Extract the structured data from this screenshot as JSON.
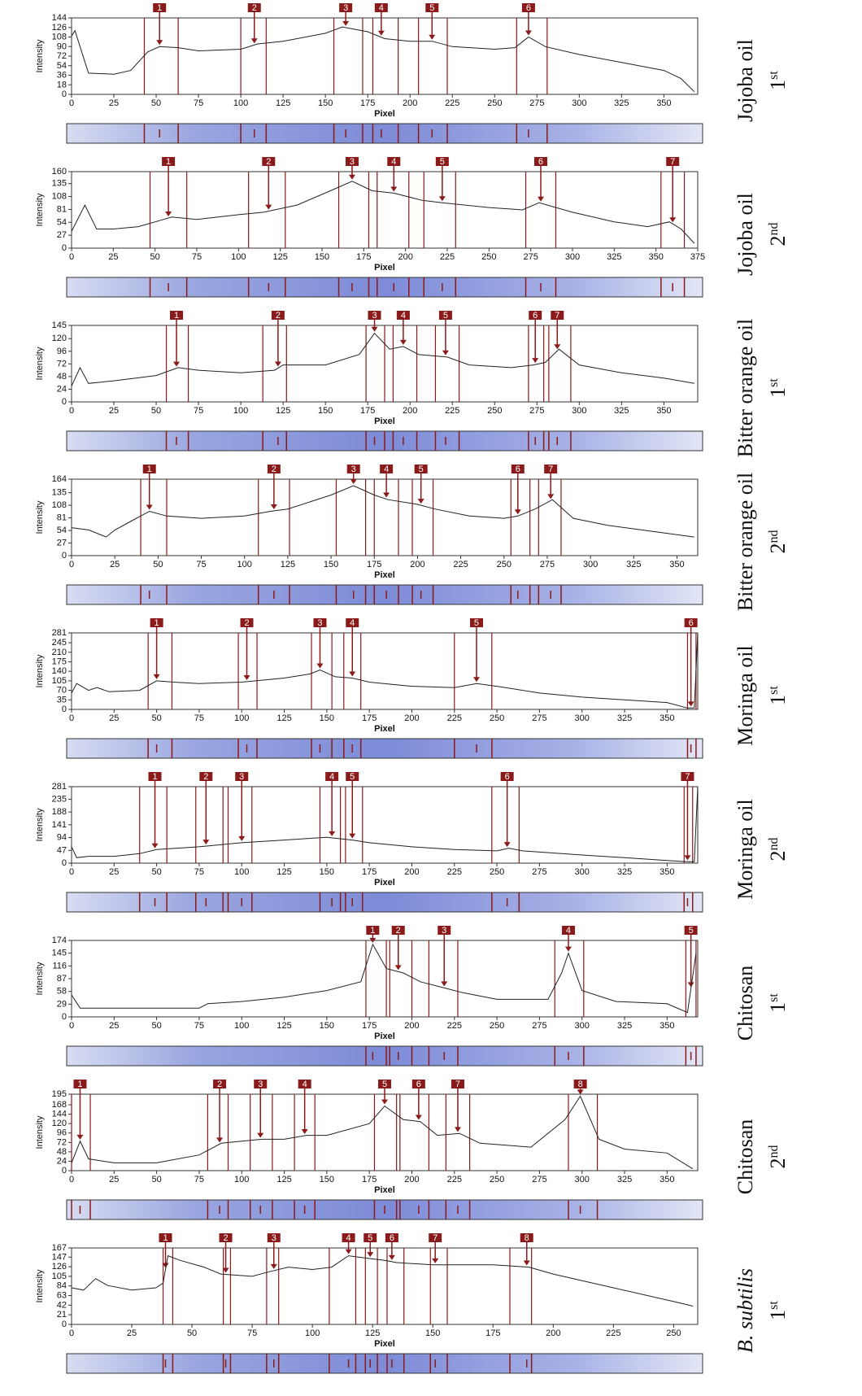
{
  "chart_data": [
    {
      "type": "line",
      "sample": "Jojoba oil",
      "run": "1",
      "run_suffix": "st",
      "x_label": "Pixel",
      "y_label": "Intensity",
      "xlim": [
        0,
        370
      ],
      "xticks": [
        0,
        25,
        50,
        75,
        100,
        125,
        150,
        175,
        200,
        225,
        250,
        275,
        300,
        325,
        350
      ],
      "ylim": [
        0,
        144
      ],
      "yticks": [
        0,
        18,
        36,
        54,
        72,
        90,
        108,
        126,
        144
      ],
      "color": "#222222",
      "x": [
        0,
        2,
        10,
        25,
        35,
        45,
        52,
        63,
        75,
        100,
        110,
        125,
        150,
        160,
        175,
        185,
        200,
        213,
        225,
        250,
        262,
        270,
        280,
        300,
        325,
        350,
        360,
        368
      ],
      "values": [
        110,
        120,
        40,
        38,
        45,
        80,
        90,
        88,
        82,
        85,
        95,
        100,
        115,
        127,
        118,
        105,
        100,
        100,
        90,
        85,
        88,
        108,
        90,
        75,
        60,
        45,
        30,
        5
      ],
      "peaks": [
        {
          "label": "1",
          "x": 52,
          "start": 43,
          "end": 63
        },
        {
          "label": "2",
          "x": 108,
          "start": 100,
          "end": 115
        },
        {
          "label": "3",
          "x": 162,
          "start": 155,
          "end": 172
        },
        {
          "label": "4",
          "x": 183,
          "start": 178,
          "end": 193
        },
        {
          "label": "5",
          "x": 213,
          "start": 205,
          "end": 222
        },
        {
          "label": "6",
          "x": 270,
          "start": 263,
          "end": 281
        }
      ]
    },
    {
      "type": "line",
      "sample": "Jojoba oil",
      "run": "2",
      "run_suffix": "nd",
      "x_label": "Pixel",
      "y_label": "Intensity",
      "xlim": [
        0,
        375
      ],
      "xticks": [
        0,
        25,
        50,
        75,
        100,
        125,
        150,
        175,
        200,
        225,
        250,
        275,
        300,
        325,
        350,
        375
      ],
      "ylim": [
        0,
        160
      ],
      "yticks": [
        0,
        27,
        54,
        81,
        108,
        135,
        160
      ],
      "color": "#222222",
      "x": [
        0,
        8,
        15,
        25,
        40,
        55,
        60,
        75,
        100,
        115,
        135,
        155,
        168,
        180,
        193,
        210,
        222,
        250,
        270,
        280,
        300,
        325,
        345,
        358,
        365,
        373
      ],
      "values": [
        35,
        90,
        40,
        40,
        45,
        60,
        65,
        60,
        70,
        75,
        90,
        120,
        140,
        120,
        115,
        100,
        95,
        85,
        80,
        95,
        75,
        55,
        45,
        55,
        40,
        10
      ],
      "peaks": [
        {
          "label": "1",
          "x": 58,
          "start": 47,
          "end": 69
        },
        {
          "label": "2",
          "x": 118,
          "start": 106,
          "end": 128
        },
        {
          "label": "3",
          "x": 168,
          "start": 160,
          "end": 178
        },
        {
          "label": "4",
          "x": 193,
          "start": 183,
          "end": 202
        },
        {
          "label": "5",
          "x": 222,
          "start": 211,
          "end": 230
        },
        {
          "label": "6",
          "x": 281,
          "start": 272,
          "end": 290
        },
        {
          "label": "7",
          "x": 360,
          "start": 353,
          "end": 367
        }
      ]
    },
    {
      "type": "line",
      "sample": "Bitter orange oil",
      "run": "1",
      "run_suffix": "st",
      "x_label": "Pixel",
      "y_label": "Intensity",
      "xlim": [
        0,
        370
      ],
      "xticks": [
        0,
        25,
        50,
        75,
        100,
        125,
        150,
        175,
        200,
        225,
        250,
        275,
        300,
        325,
        350
      ],
      "ylim": [
        0,
        145
      ],
      "yticks": [
        0,
        24,
        48,
        72,
        96,
        120,
        145
      ],
      "color": "#222222",
      "x": [
        0,
        5,
        10,
        25,
        50,
        63,
        75,
        100,
        120,
        125,
        150,
        170,
        179,
        188,
        196,
        205,
        222,
        235,
        260,
        273,
        280,
        288,
        300,
        325,
        350,
        368
      ],
      "values": [
        30,
        65,
        35,
        40,
        50,
        65,
        60,
        55,
        60,
        70,
        70,
        90,
        130,
        100,
        105,
        90,
        85,
        70,
        65,
        70,
        75,
        100,
        70,
        55,
        45,
        35
      ],
      "peaks": [
        {
          "label": "1",
          "x": 62,
          "start": 56,
          "end": 69
        },
        {
          "label": "2",
          "x": 122,
          "start": 113,
          "end": 127
        },
        {
          "label": "3",
          "x": 179,
          "start": 174,
          "end": 185
        },
        {
          "label": "4",
          "x": 196,
          "start": 190,
          "end": 204
        },
        {
          "label": "5",
          "x": 221,
          "start": 215,
          "end": 229
        },
        {
          "label": "6",
          "x": 274,
          "start": 270,
          "end": 279
        },
        {
          "label": "7",
          "x": 287,
          "start": 282,
          "end": 295
        }
      ]
    },
    {
      "type": "line",
      "sample": "Bitter orange oil",
      "run": "2",
      "run_suffix": "nd",
      "x_label": "Pixel",
      "y_label": "Intensity",
      "xlim": [
        0,
        362
      ],
      "xticks": [
        0,
        25,
        50,
        75,
        100,
        125,
        150,
        175,
        200,
        225,
        250,
        275,
        300,
        325,
        350
      ],
      "ylim": [
        0,
        164
      ],
      "yticks": [
        0,
        27,
        54,
        81,
        108,
        135,
        164
      ],
      "color": "#222222",
      "x": [
        0,
        10,
        20,
        25,
        35,
        45,
        55,
        75,
        100,
        115,
        125,
        150,
        163,
        175,
        183,
        200,
        210,
        230,
        250,
        258,
        268,
        278,
        290,
        310,
        330,
        360
      ],
      "values": [
        60,
        55,
        40,
        55,
        75,
        95,
        85,
        80,
        85,
        95,
        100,
        130,
        150,
        130,
        120,
        110,
        100,
        85,
        80,
        85,
        100,
        120,
        80,
        65,
        55,
        40
      ],
      "peaks": [
        {
          "label": "1",
          "x": 45,
          "start": 40,
          "end": 55
        },
        {
          "label": "2",
          "x": 117,
          "start": 108,
          "end": 126
        },
        {
          "label": "3",
          "x": 163,
          "start": 153,
          "end": 170
        },
        {
          "label": "4",
          "x": 182,
          "start": 175,
          "end": 189
        },
        {
          "label": "5",
          "x": 202,
          "start": 197,
          "end": 209
        },
        {
          "label": "6",
          "x": 258,
          "start": 254,
          "end": 265
        },
        {
          "label": "7",
          "x": 277,
          "start": 270,
          "end": 283
        }
      ]
    },
    {
      "type": "line",
      "sample": "Moringa oil",
      "run": "1",
      "run_suffix": "st",
      "x_label": "Pixel",
      "y_label": "Intensity",
      "xlim": [
        0,
        368
      ],
      "xticks": [
        0,
        25,
        50,
        75,
        100,
        125,
        150,
        175,
        200,
        225,
        250,
        275,
        300,
        325,
        350
      ],
      "ylim": [
        0,
        281
      ],
      "yticks": [
        0,
        35,
        70,
        105,
        140,
        175,
        210,
        245,
        281
      ],
      "color": "#222222",
      "x": [
        0,
        3,
        10,
        15,
        22,
        40,
        50,
        60,
        75,
        100,
        125,
        140,
        146,
        155,
        165,
        175,
        200,
        225,
        238,
        250,
        275,
        300,
        325,
        350,
        362,
        366,
        368
      ],
      "values": [
        60,
        95,
        70,
        80,
        65,
        70,
        105,
        100,
        95,
        100,
        115,
        130,
        145,
        120,
        115,
        100,
        85,
        80,
        95,
        85,
        60,
        45,
        35,
        25,
        5,
        5,
        281
      ],
      "peaks": [
        {
          "label": "1",
          "x": 50,
          "start": 45,
          "end": 59
        },
        {
          "label": "2",
          "x": 103,
          "start": 98,
          "end": 109
        },
        {
          "label": "3",
          "x": 146,
          "start": 141,
          "end": 153
        },
        {
          "label": "4",
          "x": 165,
          "start": 160,
          "end": 170
        },
        {
          "label": "5",
          "x": 238,
          "start": 225,
          "end": 247
        },
        {
          "label": "6",
          "x": 364,
          "start": 362,
          "end": 367
        }
      ]
    },
    {
      "type": "line",
      "sample": "Moringa oil",
      "run": "2",
      "run_suffix": "nd",
      "x_label": "Pixel",
      "y_label": "Intensity",
      "xlim": [
        0,
        368
      ],
      "xticks": [
        0,
        25,
        50,
        75,
        100,
        125,
        150,
        175,
        200,
        225,
        250,
        275,
        300,
        325,
        350
      ],
      "ylim": [
        0,
        281
      ],
      "yticks": [
        0,
        47,
        94,
        141,
        188,
        235,
        281
      ],
      "color": "#222222",
      "x": [
        0,
        3,
        10,
        25,
        40,
        50,
        75,
        100,
        125,
        150,
        165,
        175,
        200,
        225,
        250,
        257,
        265,
        300,
        325,
        350,
        362,
        366,
        368
      ],
      "values": [
        60,
        20,
        25,
        25,
        35,
        50,
        60,
        75,
        85,
        95,
        85,
        75,
        60,
        50,
        45,
        55,
        45,
        30,
        20,
        10,
        5,
        5,
        281
      ],
      "peaks": [
        {
          "label": "1",
          "x": 49,
          "start": 40,
          "end": 56
        },
        {
          "label": "2",
          "x": 79,
          "start": 73,
          "end": 89
        },
        {
          "label": "3",
          "x": 100,
          "start": 92,
          "end": 106
        },
        {
          "label": "4",
          "x": 153,
          "start": 146,
          "end": 158
        },
        {
          "label": "5",
          "x": 165,
          "start": 161,
          "end": 171
        },
        {
          "label": "6",
          "x": 256,
          "start": 247,
          "end": 263
        },
        {
          "label": "7",
          "x": 362,
          "start": 360,
          "end": 365
        }
      ]
    },
    {
      "type": "line",
      "sample": "Chitosan",
      "run": "1",
      "run_suffix": "st",
      "x_label": "Pixel",
      "y_label": "Intensity",
      "xlim": [
        0,
        368
      ],
      "xticks": [
        0,
        25,
        50,
        75,
        100,
        125,
        150,
        175,
        200,
        225,
        250,
        275,
        300,
        325,
        350
      ],
      "ylim": [
        0,
        174
      ],
      "yticks": [
        0,
        29,
        58,
        87,
        116,
        145,
        174
      ],
      "color": "#222222",
      "x": [
        0,
        5,
        25,
        75,
        80,
        100,
        125,
        150,
        170,
        177,
        185,
        195,
        205,
        220,
        230,
        250,
        280,
        288,
        292,
        300,
        320,
        350,
        362,
        367
      ],
      "values": [
        50,
        20,
        20,
        20,
        30,
        35,
        45,
        60,
        80,
        165,
        110,
        100,
        80,
        65,
        55,
        40,
        40,
        100,
        145,
        60,
        35,
        30,
        10,
        145
      ],
      "peaks": [
        {
          "label": "1",
          "x": 177,
          "start": 173,
          "end": 185
        },
        {
          "label": "2",
          "x": 192,
          "start": 187,
          "end": 200
        },
        {
          "label": "3",
          "x": 219,
          "start": 210,
          "end": 227
        },
        {
          "label": "4",
          "x": 292,
          "start": 284,
          "end": 301
        },
        {
          "label": "5",
          "x": 364,
          "start": 361,
          "end": 367
        }
      ]
    },
    {
      "type": "line",
      "sample": "Chitosan",
      "run": "2",
      "run_suffix": "nd",
      "x_label": "Pixel",
      "y_label": "Intensity",
      "xlim": [
        0,
        368
      ],
      "xticks": [
        0,
        25,
        50,
        75,
        100,
        125,
        150,
        175,
        200,
        225,
        250,
        275,
        300,
        325,
        350
      ],
      "ylim": [
        0,
        195
      ],
      "yticks": [
        0,
        24,
        48,
        72,
        96,
        120,
        144,
        168,
        195
      ],
      "color": "#222222",
      "x": [
        0,
        5,
        10,
        25,
        50,
        75,
        88,
        100,
        112,
        125,
        138,
        150,
        175,
        184,
        195,
        205,
        215,
        228,
        240,
        270,
        290,
        299,
        310,
        325,
        350,
        365
      ],
      "values": [
        20,
        75,
        30,
        20,
        20,
        40,
        70,
        75,
        80,
        80,
        90,
        90,
        120,
        165,
        130,
        125,
        90,
        95,
        70,
        60,
        130,
        190,
        80,
        55,
        45,
        5
      ],
      "peaks": [
        {
          "label": "1",
          "x": 5,
          "start": 0,
          "end": 11
        },
        {
          "label": "2",
          "x": 87,
          "start": 80,
          "end": 92
        },
        {
          "label": "3",
          "x": 111,
          "start": 105,
          "end": 118
        },
        {
          "label": "4",
          "x": 137,
          "start": 131,
          "end": 143
        },
        {
          "label": "5",
          "x": 184,
          "start": 178,
          "end": 191
        },
        {
          "label": "6",
          "x": 204,
          "start": 193,
          "end": 210
        },
        {
          "label": "7",
          "x": 227,
          "start": 220,
          "end": 234
        },
        {
          "label": "8",
          "x": 299,
          "start": 292,
          "end": 309
        }
      ]
    },
    {
      "type": "line",
      "sample": "B. subtilis",
      "italic": true,
      "run": "1",
      "run_suffix": "st",
      "x_label": "Pixel",
      "y_label": "Intensity",
      "xlim": [
        0,
        260
      ],
      "xticks": [
        0,
        25,
        50,
        75,
        100,
        125,
        150,
        175,
        200,
        225,
        250
      ],
      "ylim": [
        0,
        167
      ],
      "yticks": [
        0,
        21,
        42,
        63,
        84,
        105,
        126,
        147,
        167
      ],
      "color": "#222222",
      "x": [
        0,
        5,
        10,
        15,
        25,
        35,
        38,
        40,
        45,
        55,
        62,
        75,
        82,
        90,
        100,
        108,
        115,
        122,
        130,
        135,
        150,
        160,
        175,
        190,
        200,
        225,
        250,
        258
      ],
      "values": [
        80,
        75,
        100,
        85,
        75,
        80,
        90,
        150,
        140,
        125,
        110,
        105,
        115,
        125,
        120,
        125,
        150,
        145,
        140,
        135,
        130,
        130,
        130,
        125,
        110,
        80,
        50,
        40
      ],
      "peaks": [
        {
          "label": "1",
          "x": 39,
          "start": 38,
          "end": 42
        },
        {
          "label": "2",
          "x": 64,
          "start": 63,
          "end": 66
        },
        {
          "label": "3",
          "x": 84,
          "start": 81,
          "end": 86
        },
        {
          "label": "4",
          "x": 115,
          "start": 107,
          "end": 118
        },
        {
          "label": "5",
          "x": 124,
          "start": 122,
          "end": 127
        },
        {
          "label": "6",
          "x": 133,
          "start": 131,
          "end": 138
        },
        {
          "label": "7",
          "x": 151,
          "start": 149,
          "end": 156
        },
        {
          "label": "8",
          "x": 189,
          "start": 182,
          "end": 191
        }
      ]
    }
  ]
}
